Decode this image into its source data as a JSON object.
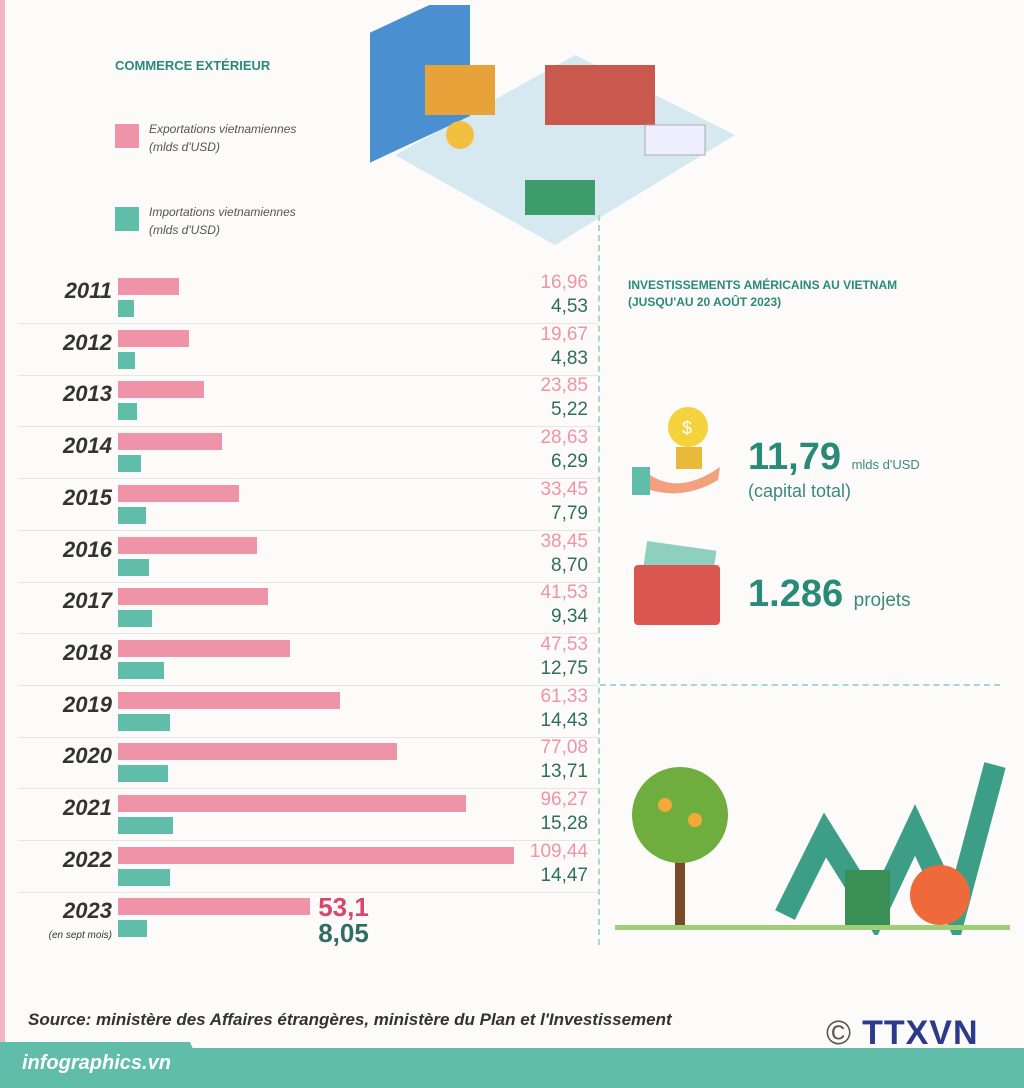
{
  "title": "COMMERCE EXTÉRIEUR",
  "legend": {
    "exports": "Exportations vietnamiennes",
    "imports": "Importations vietnamiennes",
    "unit": "(mlds d'USD)"
  },
  "chart_data": {
    "type": "bar",
    "title": "COMMERCE EXTÉRIEUR",
    "categories": [
      "2011",
      "2012",
      "2013",
      "2014",
      "2015",
      "2016",
      "2017",
      "2018",
      "2019",
      "2020",
      "2021",
      "2022",
      "2023"
    ],
    "category_notes": {
      "2023": "(en sept mois)"
    },
    "series": [
      {
        "name": "Exportations vietnamiennes (mlds d'USD)",
        "color": "#ef93a8",
        "values": [
          16.96,
          19.67,
          23.85,
          28.63,
          33.45,
          38.45,
          41.53,
          47.53,
          61.33,
          77.08,
          96.27,
          109.44,
          53.1
        ],
        "labels": [
          "16,96",
          "19,67",
          "23,85",
          "28,63",
          "33,45",
          "38,45",
          "41,53",
          "47,53",
          "61,33",
          "77,08",
          "96,27",
          "109,44",
          "53,1"
        ]
      },
      {
        "name": "Importations vietnamiennes (mlds d'USD)",
        "color": "#5fbdaa",
        "values": [
          4.53,
          4.83,
          5.22,
          6.29,
          7.79,
          8.7,
          9.34,
          12.75,
          14.43,
          13.71,
          15.28,
          14.47,
          8.05
        ],
        "labels": [
          "4,53",
          "4,83",
          "5,22",
          "6,29",
          "7,79",
          "8,70",
          "9,34",
          "12,75",
          "14,43",
          "13,71",
          "15,28",
          "14,47",
          "8,05"
        ]
      }
    ],
    "orientation": "horizontal"
  },
  "invest": {
    "title1": "INVESTISSEMENTS AMÉRICAINS AU VIETNAM",
    "title2": "(JUSQU'AU 20 AOÛT 2023)",
    "capital": "11,79",
    "capital_unit": "mlds d'USD",
    "capital_note": "(capital total)",
    "projects": "1.286",
    "projects_unit": "projets"
  },
  "source": "Source: ministère des Affaires étrangères, ministère du Plan et l'Investissement",
  "footer": "infographics.vn",
  "logo": "TTXVN",
  "copyright": "©"
}
